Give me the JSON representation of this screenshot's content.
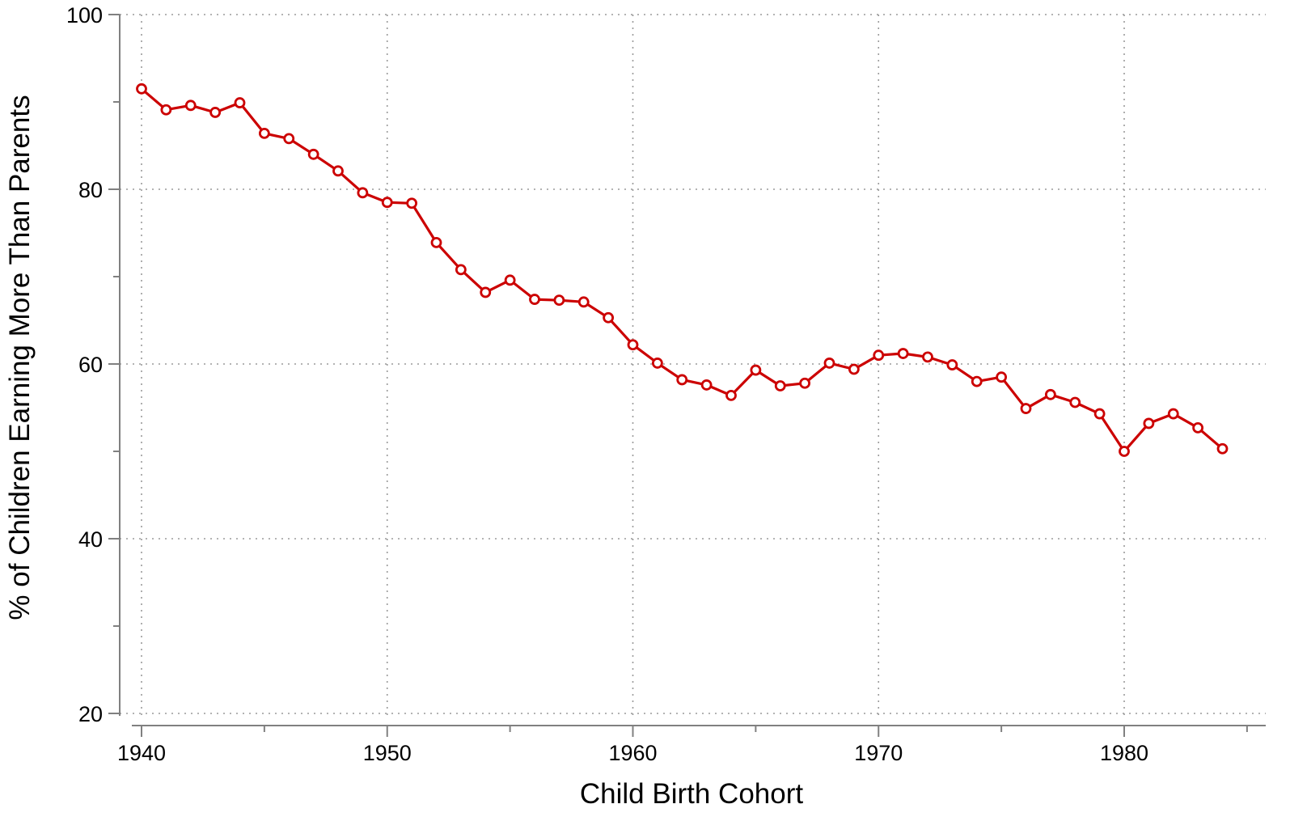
{
  "chart_data": {
    "type": "line",
    "title": "",
    "xlabel": "Child Birth Cohort",
    "ylabel": "% of Children Earning More Than Parents",
    "xlim": [
      1940,
      1985
    ],
    "ylim": [
      20,
      100
    ],
    "x_ticks": [
      1940,
      1950,
      1960,
      1970,
      1980
    ],
    "x_tick_labels": [
      "1940",
      "1950",
      "1960",
      "1970",
      "1980"
    ],
    "y_ticks": [
      20,
      40,
      60,
      80,
      100
    ],
    "y_tick_labels": [
      "20",
      "40",
      "60",
      "80",
      "100"
    ],
    "grid": true,
    "series_color": "#cc0000",
    "series": [
      {
        "x": [
          1940,
          1941,
          1942,
          1943,
          1944,
          1945,
          1946,
          1947,
          1948,
          1949,
          1950,
          1951,
          1952,
          1953,
          1954,
          1955,
          1956,
          1957,
          1958,
          1959,
          1960,
          1961,
          1962,
          1963,
          1964,
          1965,
          1966,
          1967,
          1968,
          1969,
          1970,
          1971,
          1972,
          1973,
          1974,
          1975,
          1976,
          1977,
          1978,
          1979,
          1980,
          1981,
          1982,
          1983,
          1984
        ],
        "values": [
          91.5,
          89.1,
          89.6,
          88.8,
          89.9,
          86.4,
          85.8,
          84.0,
          82.1,
          79.6,
          78.5,
          78.4,
          73.9,
          70.8,
          68.2,
          69.6,
          67.4,
          67.3,
          67.1,
          65.3,
          62.2,
          60.1,
          58.2,
          57.6,
          56.4,
          59.3,
          57.5,
          57.8,
          60.1,
          59.4,
          61.0,
          61.2,
          60.8,
          59.9,
          58.0,
          58.5,
          54.9,
          56.5,
          55.6,
          54.3,
          50.0,
          53.2,
          54.3,
          52.7,
          50.3
        ]
      }
    ]
  }
}
